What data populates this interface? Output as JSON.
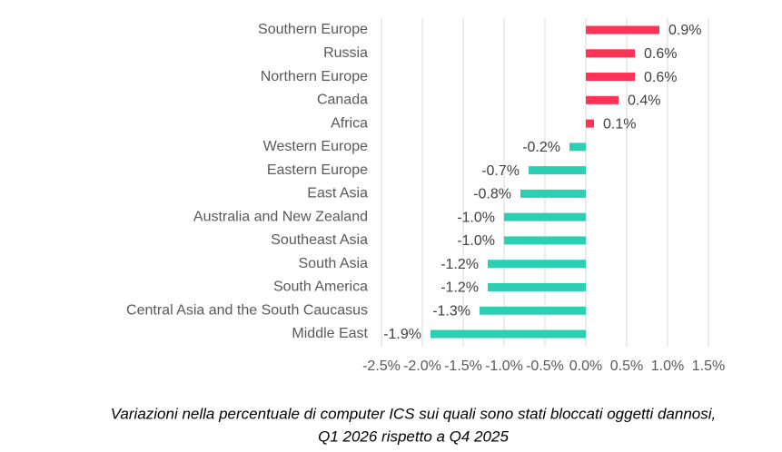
{
  "chart_data": {
    "type": "hbar",
    "categories": [
      "Southern Europe",
      "Russia",
      "Northern Europe",
      "Canada",
      "Africa",
      "Western Europe",
      "Eastern Europe",
      "East Asia",
      "Australia and New Zealand",
      "Southeast Asia",
      "South Asia",
      "South America",
      "Central Asia and the South Caucasus",
      "Middle East"
    ],
    "values": [
      0.9,
      0.6,
      0.6,
      0.4,
      0.1,
      -0.2,
      -0.7,
      -0.8,
      -1.0,
      -1.0,
      -1.2,
      -1.2,
      -1.3,
      -1.9
    ],
    "value_labels": [
      "0.9%",
      "0.6%",
      "0.6%",
      "0.4%",
      "0.1%",
      "-0.2%",
      "-0.7%",
      "-0.8%",
      "-1.0%",
      "-1.0%",
      "-1.2%",
      "-1.2%",
      "-1.3%",
      "-1.9%"
    ],
    "positive_color": "#ff3355",
    "negative_color": "#2dcfb3",
    "xlim": [
      -2.5,
      1.5
    ],
    "xticks": [
      {
        "value": -2.5,
        "label": "-2.5%"
      },
      {
        "value": -2.0,
        "label": "-2.0%"
      },
      {
        "value": -1.5,
        "label": "-1.5%"
      },
      {
        "value": -1.0,
        "label": "-1.0%"
      },
      {
        "value": -0.5,
        "label": "-0.5%"
      },
      {
        "value": 0,
        "label": "0.0%"
      },
      {
        "value": 0.5,
        "label": "0.5%"
      },
      {
        "value": 1.0,
        "label": "1.0%"
      },
      {
        "value": 1.5,
        "label": "1.5%"
      }
    ],
    "grid": true,
    "caption": [
      "Variazioni nella percentuale di computer ICS sui quali sono stati bloccati oggetti dannosi,",
      "Q1 2026 rispetto a Q4 2025"
    ]
  }
}
